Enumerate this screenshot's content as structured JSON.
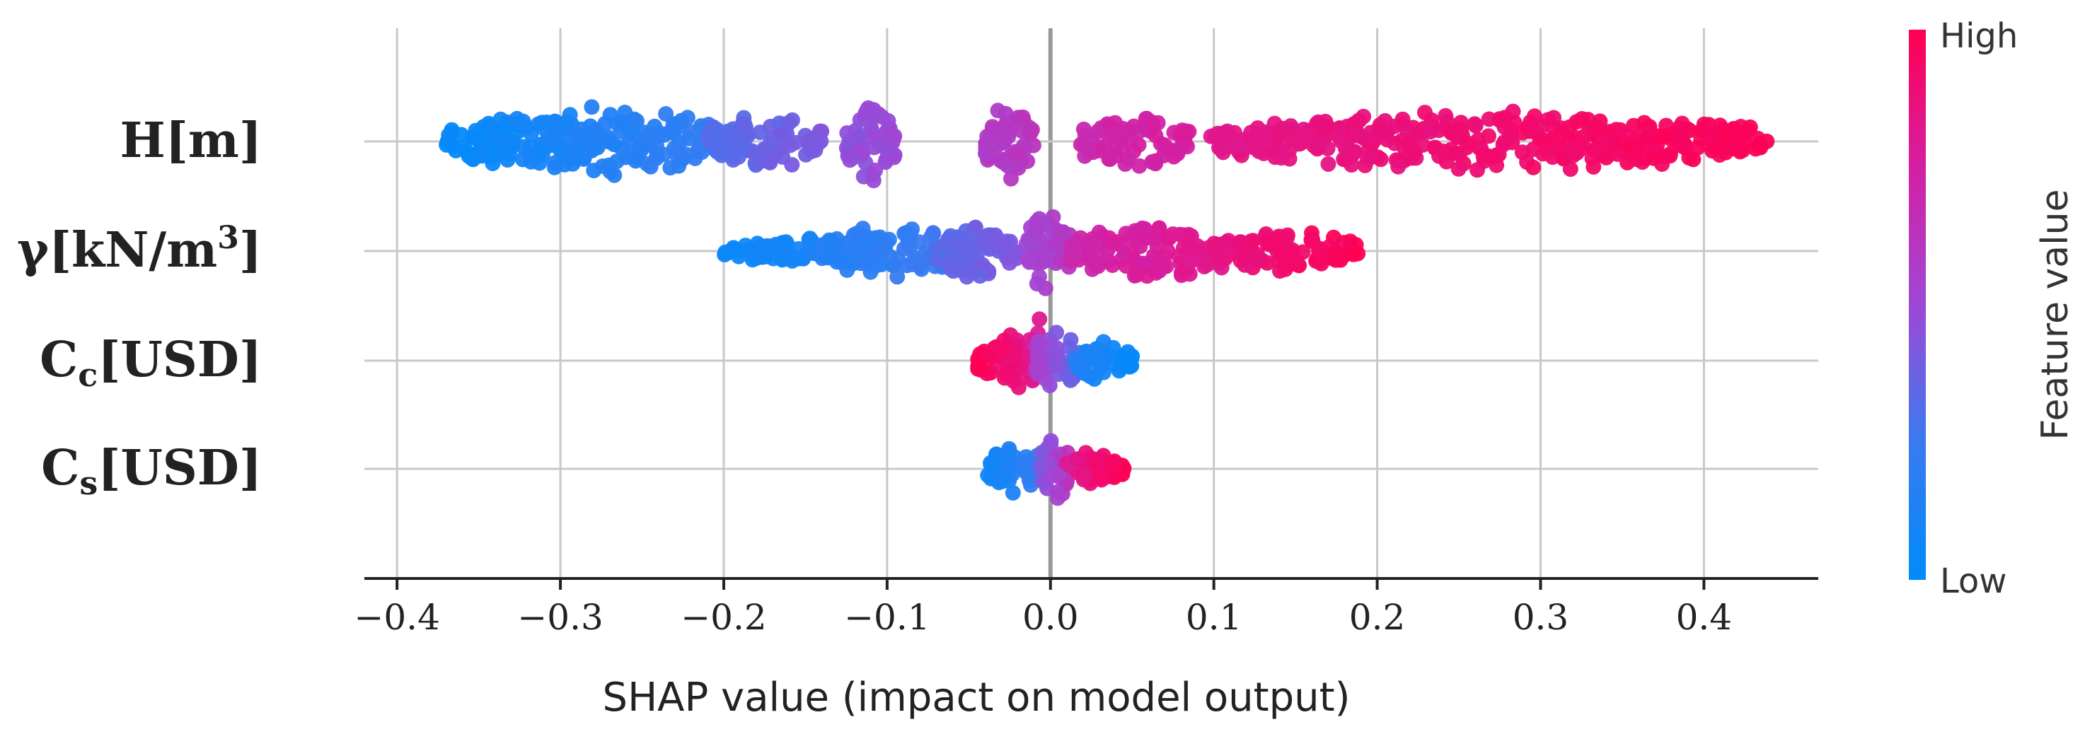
{
  "chart_data": {
    "type": "scatter",
    "subtype": "shap-beeswarm",
    "xlabel": "SHAP value (impact on model output)",
    "ylabel": "",
    "xlim": [
      -0.42,
      0.47
    ],
    "x_ticks": [
      -0.4,
      -0.3,
      -0.2,
      -0.1,
      0.0,
      0.1,
      0.2,
      0.3,
      0.4
    ],
    "x_tick_labels": [
      "−0.4",
      "−0.3",
      "−0.2",
      "−0.1",
      "0.0",
      "0.1",
      "0.2",
      "0.3",
      "0.4"
    ],
    "grid": true,
    "features": [
      {
        "name": "H",
        "unit": "[m]",
        "sub": "",
        "sup": "",
        "spread_scale": 1.0,
        "clusters": [
          {
            "start": -0.37,
            "end": -0.19,
            "value_start": 0.02,
            "value_end": 0.25,
            "spread": 0.85,
            "density": 2.6
          },
          {
            "start": -0.21,
            "end": -0.14,
            "value_start": 0.3,
            "value_end": 0.42,
            "spread": 0.7,
            "density": 2.2
          },
          {
            "start": -0.125,
            "end": -0.095,
            "value_start": 0.46,
            "value_end": 0.5,
            "spread": 1.0,
            "density": 3.0
          },
          {
            "start": -0.04,
            "end": -0.01,
            "value_start": 0.58,
            "value_end": 0.62,
            "spread": 0.9,
            "density": 3.0
          },
          {
            "start": 0.018,
            "end": 0.085,
            "value_start": 0.7,
            "value_end": 0.76,
            "spread": 0.7,
            "density": 2.2
          },
          {
            "start": 0.097,
            "end": 0.44,
            "value_start": 0.82,
            "value_end": 0.99,
            "spread": 0.75,
            "density": 2.4
          }
        ]
      },
      {
        "name": "γ",
        "unit": "[kN/m",
        "sub": "",
        "sup": "3",
        "spread_scale": 1.0,
        "clusters": [
          {
            "start": -0.2,
            "end": -0.1,
            "value_start": 0.05,
            "value_end": 0.15,
            "spread": 0.35,
            "density": 1.8
          },
          {
            "start": -0.14,
            "end": -0.05,
            "value_start": 0.15,
            "value_end": 0.28,
            "spread": 0.7,
            "density": 2.4
          },
          {
            "start": -0.07,
            "end": -0.02,
            "value_start": 0.32,
            "value_end": 0.42,
            "spread": 0.75,
            "density": 2.4
          },
          {
            "start": -0.015,
            "end": 0.012,
            "value_start": 0.5,
            "value_end": 0.6,
            "spread": 1.0,
            "density": 3.0
          },
          {
            "start": 0.012,
            "end": 0.11,
            "value_start": 0.7,
            "value_end": 0.85,
            "spread": 0.8,
            "density": 2.4
          },
          {
            "start": 0.1,
            "end": 0.19,
            "value_start": 0.85,
            "value_end": 0.99,
            "spread": 0.5,
            "density": 2.0
          }
        ]
      },
      {
        "name": "C",
        "unit": "[USD]",
        "sub": "c",
        "sup": "",
        "spread_scale": 1.0,
        "clusters": [
          {
            "start": -0.045,
            "end": -0.005,
            "value_start": 0.99,
            "value_end": 0.78,
            "spread": 1.0,
            "shape": "wedge-left",
            "density": 3.0
          },
          {
            "start": -0.01,
            "end": 0.02,
            "value_start": 0.55,
            "value_end": 0.3,
            "spread": 0.9,
            "density": 3.0
          },
          {
            "start": 0.015,
            "end": 0.05,
            "value_start": 0.15,
            "value_end": 0.02,
            "spread": 0.55,
            "density": 2.2
          }
        ]
      },
      {
        "name": "C",
        "unit": "[USD]",
        "sub": "s",
        "sup": "",
        "spread_scale": 1.0,
        "clusters": [
          {
            "start": -0.04,
            "end": -0.003,
            "value_start": 0.05,
            "value_end": 0.25,
            "spread": 0.6,
            "density": 2.6
          },
          {
            "start": -0.006,
            "end": 0.012,
            "value_start": 0.4,
            "value_end": 0.65,
            "spread": 1.0,
            "density": 3.0
          },
          {
            "start": 0.01,
            "end": 0.045,
            "value_start": 0.8,
            "value_end": 0.99,
            "spread": 0.55,
            "shape": "wedge-right",
            "density": 2.4
          }
        ]
      }
    ],
    "colorbar": {
      "label": "Feature value",
      "high_label": "High",
      "low_label": "Low",
      "color_high": "#ff0052",
      "color_low": "#008bfb",
      "color_mid": "#9e48d6"
    }
  }
}
